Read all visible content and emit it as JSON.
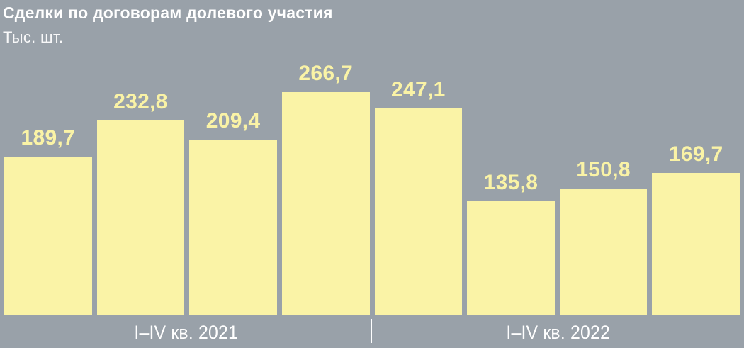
{
  "header": {
    "title": "Сделки по договорам долевого участия",
    "subtitle": "Тыс. шт."
  },
  "chart_data": {
    "type": "bar",
    "title": "Сделки по договорам долевого участия",
    "ylabel": "Тыс. шт.",
    "unit": "тыс. шт.",
    "ylim": [
      0,
      280
    ],
    "grid": false,
    "legend": false,
    "value_labels_shown": true,
    "groups": [
      {
        "label": "I–IV кв. 2021",
        "bars": [
          {
            "value": 189.7,
            "label": "189,7"
          },
          {
            "value": 232.8,
            "label": "232,8"
          },
          {
            "value": 209.4,
            "label": "209,4"
          },
          {
            "value": 266.7,
            "label": "266,7"
          }
        ]
      },
      {
        "label": "I–IV кв. 2022",
        "bars": [
          {
            "value": 247.1,
            "label": "247,1"
          },
          {
            "value": 135.8,
            "label": "135,8"
          },
          {
            "value": 150.8,
            "label": "150,8"
          },
          {
            "value": 169.7,
            "label": "169,7"
          }
        ]
      }
    ]
  },
  "colors": {
    "background": "#99A1A9",
    "bar": "#FAF3A6",
    "value_label": "#FAF3A6",
    "text": "#FFFFFF"
  }
}
